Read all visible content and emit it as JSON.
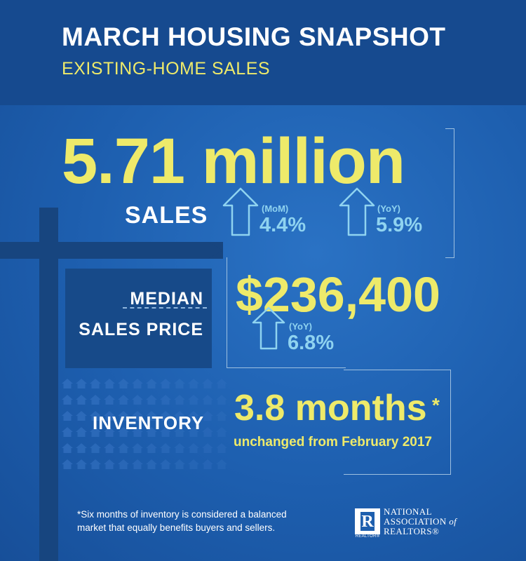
{
  "header": {
    "title": "MARCH HOUSING SNAPSHOT",
    "subtitle": "EXISTING-HOME SALES"
  },
  "sales": {
    "value": "5.71 million",
    "label": "SALES",
    "mom_label": "(MoM)",
    "mom_value": "4.4%",
    "yoy_label": "(YoY)",
    "yoy_value": "5.9%"
  },
  "median_price": {
    "label_line1": "MEDIAN",
    "label_line2": "SALES PRICE",
    "value": "$236,400",
    "yoy_label": "(YoY)",
    "yoy_value": "6.8%"
  },
  "inventory": {
    "label": "INVENTORY",
    "value": "3.8 months",
    "asterisk": "*",
    "note": "unchanged from February 2017"
  },
  "footnote": "*Six months of inventory is considered a balanced market that equally benefits buyers and sellers.",
  "logo": {
    "letter": "R",
    "mark_text": "REALTOR®",
    "line1": "NATIONAL",
    "line2_a": "ASSOCIATION ",
    "line2_b": "of",
    "line3": "REALTORS®"
  },
  "colors": {
    "background": "#1e5fae",
    "header": "#164a8f",
    "accent_yellow": "#eeea6a",
    "accent_lightblue": "#8fd3f0"
  },
  "icons": [
    "up-arrow-icon",
    "house-icon",
    "realtor-logo"
  ]
}
